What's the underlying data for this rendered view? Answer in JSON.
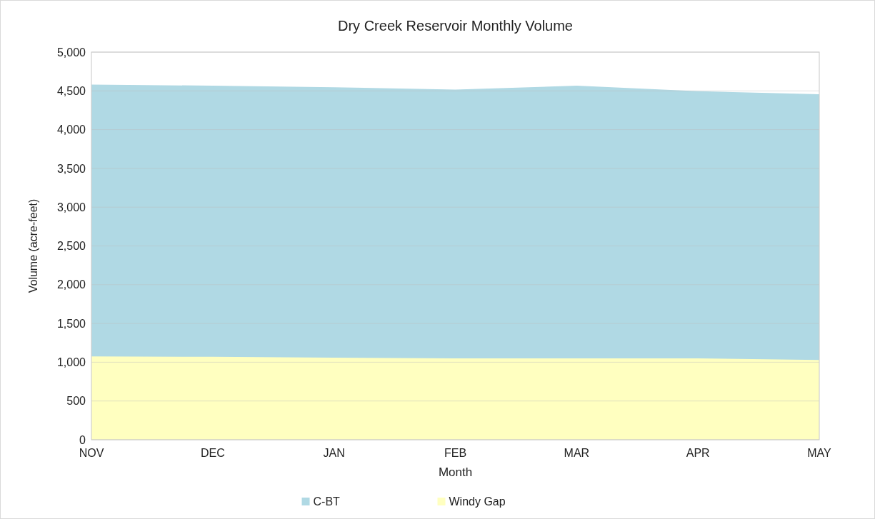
{
  "chart_data": {
    "type": "area",
    "title": "Dry Creek Reservoir Monthly Volume",
    "xlabel": "Month",
    "ylabel": "Volume (acre-feet)",
    "categories": [
      "NOV",
      "DEC",
      "JAN",
      "FEB",
      "MAR",
      "APR",
      "MAY"
    ],
    "stacked": true,
    "series": [
      {
        "name": "Windy Gap",
        "color": "#ffffc0",
        "values": [
          1075,
          1070,
          1060,
          1050,
          1050,
          1050,
          1030
        ]
      },
      {
        "name": "C-BT",
        "color": "#b0d9e4",
        "values": [
          3500,
          3490,
          3480,
          3460,
          3510,
          3440,
          3420
        ]
      }
    ],
    "ylim": [
      0,
      5000
    ],
    "yticks": [
      {
        "value": 0,
        "label": "0"
      },
      {
        "value": 500,
        "label": "500"
      },
      {
        "value": 1000,
        "label": "1,000"
      },
      {
        "value": 1500,
        "label": "1,500"
      },
      {
        "value": 2000,
        "label": "2,000"
      },
      {
        "value": 2500,
        "label": "2,500"
      },
      {
        "value": 3000,
        "label": "3,000"
      },
      {
        "value": 3500,
        "label": "3,500"
      },
      {
        "value": 4000,
        "label": "4,000"
      },
      {
        "value": 4500,
        "label": "4,500"
      },
      {
        "value": 5000,
        "label": "5,000"
      }
    ],
    "grid": "y",
    "legend": "bottom"
  }
}
